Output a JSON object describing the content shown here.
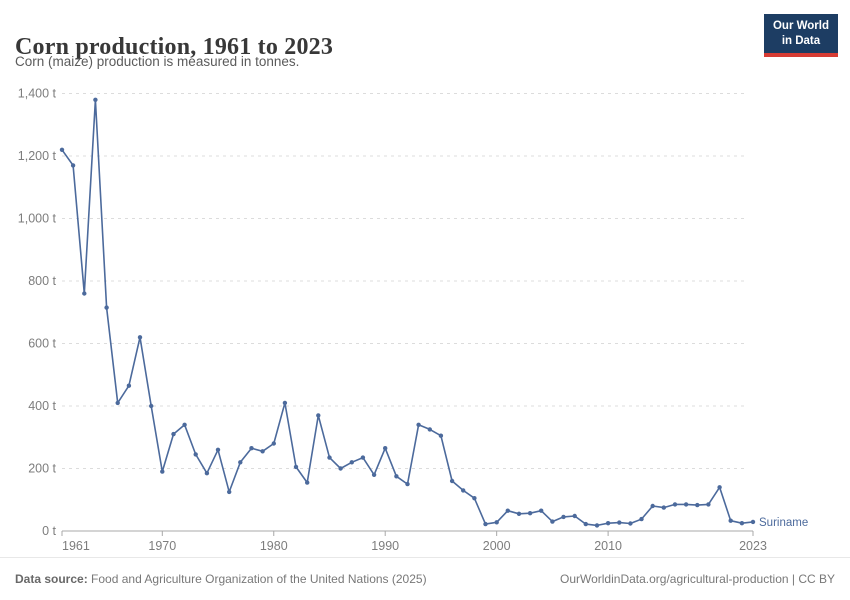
{
  "header": {
    "title": "Corn production, 1961 to 2023",
    "subtitle": "Corn (maize) production is measured in tonnes.",
    "logo": {
      "line1": "Our World",
      "line2": "in Data",
      "bg_color": "#1d3d63",
      "accent_color": "#d73c34"
    }
  },
  "chart_data": {
    "type": "line",
    "title": "Corn production, 1961 to 2023",
    "unit": "tonnes",
    "xlabel": "",
    "ylabel": "",
    "xlim": [
      1961,
      2023
    ],
    "ylim": [
      0,
      1400
    ],
    "grid": "horizontal dashed",
    "legend_position": "end-of-line label",
    "x_ticks": [
      1961,
      1970,
      1980,
      1990,
      2000,
      2010,
      2023
    ],
    "y_ticks": [
      0,
      200,
      400,
      600,
      800,
      1000,
      1200,
      1400
    ],
    "y_tick_labels": [
      "0 t",
      "200 t",
      "400 t",
      "600 t",
      "800 t",
      "1,000 t",
      "1,200 t",
      "1,400 t"
    ],
    "line_color": "#4c6a9c",
    "series": [
      {
        "name": "Suriname",
        "color": "#4c6a9c",
        "years": [
          1961,
          1962,
          1963,
          1964,
          1965,
          1966,
          1967,
          1968,
          1969,
          1970,
          1971,
          1972,
          1973,
          1974,
          1975,
          1976,
          1977,
          1978,
          1979,
          1980,
          1981,
          1982,
          1983,
          1984,
          1985,
          1986,
          1987,
          1988,
          1989,
          1990,
          1991,
          1992,
          1993,
          1994,
          1995,
          1996,
          1997,
          1998,
          1999,
          2000,
          2001,
          2002,
          2003,
          2004,
          2005,
          2006,
          2007,
          2008,
          2009,
          2010,
          2011,
          2012,
          2013,
          2014,
          2015,
          2016,
          2017,
          2018,
          2019,
          2020,
          2021,
          2022,
          2023
        ],
        "values": [
          1220,
          1170,
          760,
          1380,
          715,
          410,
          465,
          620,
          400,
          190,
          310,
          340,
          245,
          185,
          260,
          125,
          220,
          265,
          255,
          280,
          410,
          205,
          155,
          370,
          235,
          200,
          220,
          235,
          180,
          265,
          175,
          150,
          340,
          325,
          305,
          160,
          130,
          105,
          22,
          28,
          65,
          55,
          57,
          65,
          30,
          45,
          48,
          22,
          18,
          25,
          27,
          24,
          38,
          80,
          75,
          85,
          85,
          83,
          85,
          140,
          33,
          25,
          29
        ]
      }
    ]
  },
  "footer": {
    "source_label": "Data source:",
    "source_text": " Food and Agriculture Organization of the United Nations (2025)",
    "right_text": "OurWorldinData.org/agricultural-production | CC BY"
  }
}
